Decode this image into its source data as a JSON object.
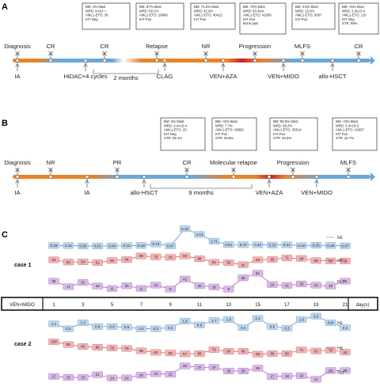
{
  "panels": {
    "A": {
      "letter": "A",
      "top_labels": [
        "Diagnosis",
        "CR",
        "CR",
        "Relapse",
        "NR",
        "Progression",
        "MLFS",
        "CR"
      ],
      "bottom_labels": [
        "IA",
        "HiDAC×4 cycles",
        "CLAG",
        "VEN+AZA",
        "VEN+MIDO",
        "allo-HSCT"
      ],
      "interval_label": "2 months",
      "info_boxes": [
        [
          "BM: 2% blast",
          "MRD: 9×10⁻⁴",
          "AML1-ETO: 36",
          "KIT Neg"
        ],
        [
          "BM: 87% blast",
          "MRD: 69.1%",
          "AML1-ETO: 18666",
          "KIT Pos"
        ],
        [
          "BM: 71.5% blast",
          "MRD: 42.8%",
          "AML1-ETO: 40412",
          "KIT Pos"
        ],
        [
          "BM: 75% blast",
          "MRD: 93.46%",
          "AML1-ETO: 41056",
          "KIT Pos",
          "Bone pain"
        ],
        [
          "BM: 4.5% blast",
          "MRD: 15.6%",
          "AML1-ETO: 3067",
          "KIT Pos"
        ],
        [
          "BM: <5% blast",
          "MRD: 2.9x10-4",
          "AML1-ETO: 110",
          "KIT Neg",
          "STR: 99%"
        ]
      ]
    },
    "B": {
      "letter": "B",
      "top_labels": [
        "Diagnosis",
        "NR",
        "PR",
        "CR",
        "Molecular relapse",
        "Progression",
        "MLFS"
      ],
      "bottom_labels": [
        "IA",
        "IA",
        "allo-HSCT",
        "VEN+AZA",
        "VEN+MIDO"
      ],
      "interval_label": "9 months",
      "info_boxes": [
        [
          "BM: 2% blast",
          "MRD: 3.4×10-4",
          "AML1-ETO: 20",
          "KIT Neg",
          "STR: 99.1%"
        ],
        [
          "BM: <5% blast",
          "MRD: 7.7%",
          "AML1-ETO: 18993",
          "KIT Pos",
          "STR: 93.8%"
        ],
        [
          "BM: 80.5% blast",
          "MRD: 68.2%",
          "AML1-ETO: 35514",
          "KIT Pos",
          "STR: 29.9%"
        ],
        [
          "BM: <5% blast",
          "MRD: 3.3×10-3",
          "AML1-ETO: 10037",
          "KIT Pos",
          "STR: 22.7%"
        ]
      ]
    },
    "C": {
      "letter": "C",
      "treatment_label": "VEN+MIDO",
      "day_unit_label": "day(s)",
      "day_ticks": [
        "1",
        "3",
        "5",
        "7",
        "9",
        "11",
        "13",
        "15",
        "17",
        "19",
        "21"
      ],
      "case1": {
        "label": "case 1",
        "series": [
          {
            "name": "NE",
            "color": "#bcd6ee",
            "values": [
              "0.18",
              "0.16",
              "0.00",
              "0.01",
              "0.04",
              "0.12",
              "0.18",
              "0.73",
              "0.07",
              "6.15",
              "4.13",
              "1.71",
              "0.51",
              "0.47",
              "0.42",
              "0.33",
              "0.41",
              "0.16",
              "0.26",
              "0.18",
              "0.07"
            ]
          },
          {
            "name": "HB",
            "color": "#f2b3b3",
            "values": [
              "63",
              "53",
              "54",
              "51",
              "60",
              "64",
              "80",
              "76",
              "74",
              "80",
              "68",
              "52",
              "50",
              "41",
              "63",
              "65",
              "71",
              "69",
              "60",
              "58",
              "58"
            ]
          },
          {
            "name": "PLT",
            "color": "#d9b8e8",
            "values": [
              "35",
              "17",
              "31",
              "19",
              "11",
              "20",
              "11",
              "22",
              "9",
              "42",
              "20",
              "16",
              "9",
              "46",
              "61",
              "24",
              "21",
              "26",
              "22",
              "19",
              "35"
            ]
          }
        ]
      },
      "case2": {
        "label": "case 2",
        "series": [
          {
            "name": "NE",
            "color": "#bcd6ee",
            "values": [
              "1.1",
              "0.2",
              "1.3",
              "0.6",
              "0.6",
              "0.5",
              "0.2",
              "0.2",
              "0.4",
              "1.6",
              "0.9",
              "1.7",
              "1.9",
              "0.4",
              "2.1",
              "0.6",
              "0.3",
              "1.9",
              "2.5",
              "1.3",
              "0.4"
            ]
          },
          {
            "name": "HB",
            "color": "#f2b3b3",
            "values": [
              "100",
              "90",
              "83",
              "80",
              "78",
              "76",
              "68",
              "62",
              "60",
              "57",
              "58",
              "72",
              "66",
              "66",
              "56",
              "58",
              "58",
              "71",
              "67",
              "70",
              "63"
            ]
          },
          {
            "name": "PLT",
            "color": "#d9b8e8",
            "values": [
              "17",
              "15",
              "15",
              "21",
              "14",
              "14",
              "20",
              "23",
              "22",
              "40",
              "37",
              "37",
              "29",
              "29",
              "35",
              "17",
              "18",
              "19",
              "11",
              "30",
              "30"
            ]
          }
        ]
      }
    }
  }
}
